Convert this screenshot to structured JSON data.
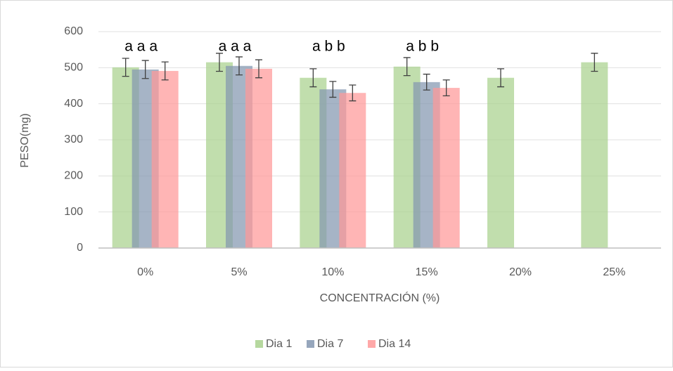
{
  "chart_data": {
    "type": "bar",
    "ylabel": "PESO(mg)",
    "xlabel": "CONCENTRACIÓN (%)",
    "categories": [
      "0%",
      "5%",
      "10%",
      "15%",
      "20%",
      "25%"
    ],
    "series": [
      {
        "name": "Dia 1",
        "color": "#a9d18e",
        "values": [
          501,
          515,
          472,
          503,
          472,
          515
        ],
        "errors": [
          25,
          25,
          25,
          25,
          25,
          25
        ]
      },
      {
        "name": "Dia 7",
        "color": "#8497b0",
        "values": [
          495,
          505,
          440,
          460,
          null,
          null
        ],
        "errors": [
          25,
          25,
          22,
          22,
          null,
          null
        ]
      },
      {
        "name": "Dia 14",
        "color": "#ff9999",
        "values": [
          491,
          497,
          430,
          444,
          null,
          null
        ],
        "errors": [
          25,
          25,
          22,
          22,
          null,
          null
        ]
      }
    ],
    "annotations": [
      "a a a",
      "a a a",
      "a b b",
      "a b b",
      null,
      null
    ],
    "ylim": [
      0,
      600
    ],
    "yticks": [
      0,
      100,
      200,
      300,
      400,
      500,
      600
    ],
    "grid": true,
    "legend": "bottom"
  }
}
